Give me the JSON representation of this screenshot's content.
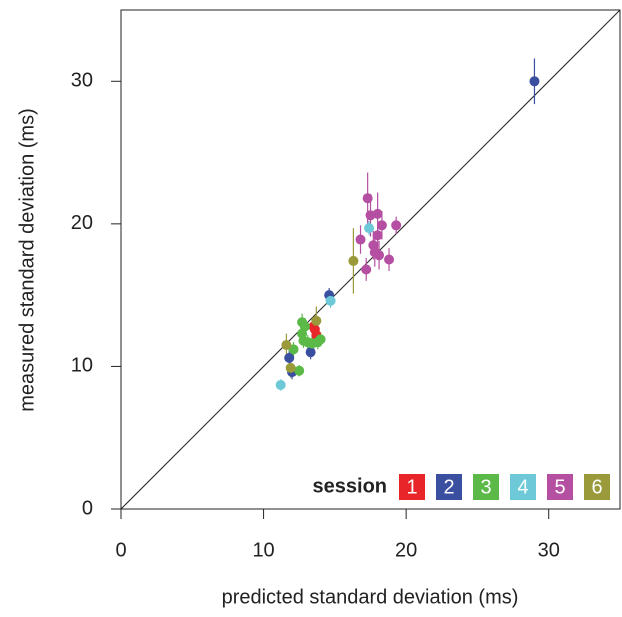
{
  "chart_data": {
    "type": "scatter",
    "xlabel": "predicted standard deviation (ms)",
    "ylabel": "measured standard deviation (ms)",
    "legend_title": "session",
    "legend_position": "lower right",
    "xlim": [
      0,
      35
    ],
    "ylim": [
      0,
      35
    ],
    "xticks": [
      0,
      10,
      20,
      30
    ],
    "yticks": [
      0,
      10,
      20,
      30
    ],
    "diagonal": true,
    "series": [
      {
        "name": "1",
        "color": "#e8262a",
        "x": [
          13.6,
          13.7,
          13.5
        ],
        "values": [
          12.6,
          12.2,
          12.8
        ],
        "errors": [
          0.6,
          0.5,
          0.5
        ]
      },
      {
        "name": "2",
        "color": "#3a4fa0",
        "x": [
          29.0,
          14.6,
          11.8,
          13.3,
          12.0
        ],
        "values": [
          30.0,
          15.0,
          10.6,
          11.0,
          9.6
        ],
        "errors": [
          1.6,
          0.5,
          0.8,
          0.5,
          0.5
        ]
      },
      {
        "name": "3",
        "color": "#5ab947",
        "x": [
          12.7,
          12.9,
          12.8,
          13.1,
          13.4,
          13.8,
          14.0,
          12.5,
          12.1,
          12.7
        ],
        "values": [
          13.1,
          12.8,
          11.8,
          11.7,
          11.6,
          11.7,
          11.9,
          9.7,
          11.2,
          12.3
        ],
        "errors": [
          0.6,
          0.6,
          0.5,
          0.5,
          0.5,
          0.5,
          0.5,
          0.4,
          0.5,
          0.5
        ]
      },
      {
        "name": "4",
        "color": "#6dc8d8",
        "x": [
          11.2,
          14.7,
          17.4
        ],
        "values": [
          8.7,
          14.6,
          19.7
        ],
        "errors": [
          0.4,
          0.5,
          0.5
        ]
      },
      {
        "name": "5",
        "color": "#b44fa1",
        "x": [
          17.3,
          17.5,
          18.0,
          17.7,
          17.8,
          18.1,
          18.0,
          18.3,
          16.8,
          17.2,
          18.8,
          19.3
        ],
        "values": [
          21.8,
          20.6,
          20.7,
          18.5,
          18.0,
          17.8,
          19.2,
          19.9,
          18.9,
          16.8,
          17.5,
          19.9
        ],
        "errors": [
          1.8,
          1.5,
          1.5,
          1.0,
          1.0,
          1.0,
          1.0,
          1.0,
          1.0,
          0.8,
          0.8,
          0.6
        ]
      },
      {
        "name": "6",
        "color": "#9a9a3a",
        "x": [
          16.3,
          13.7,
          11.6,
          11.9
        ],
        "values": [
          17.4,
          13.2,
          11.5,
          9.9
        ],
        "errors": [
          2.3,
          1.0,
          0.8,
          0.7
        ]
      }
    ]
  }
}
